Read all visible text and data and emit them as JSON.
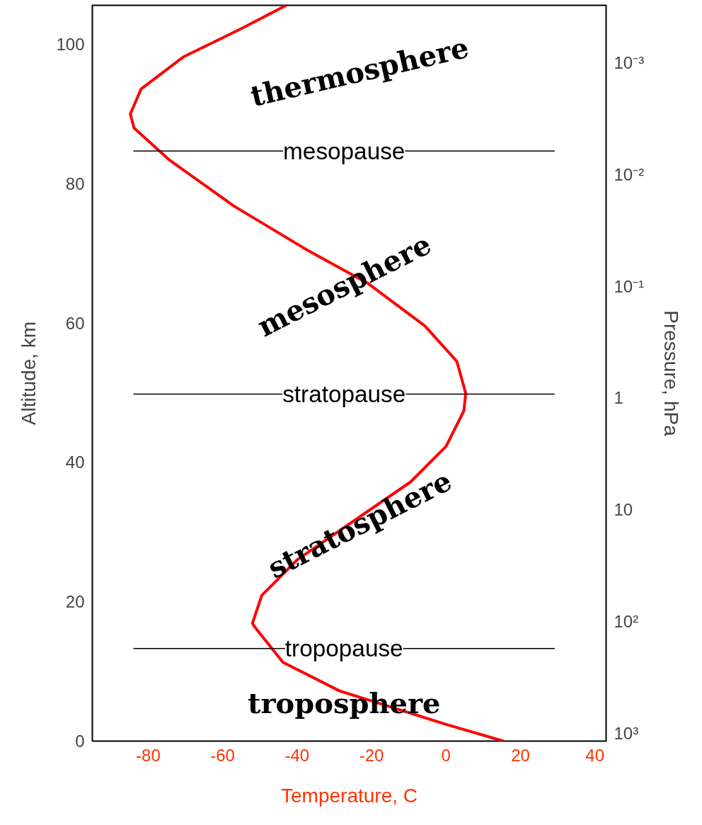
{
  "chart_data": {
    "type": "line",
    "xlabel": "Temperature, C",
    "ylabel": "Altitude, km",
    "y2label": "Pressure, hPa",
    "xlim": [
      -95,
      43
    ],
    "ylim": [
      0,
      105.6
    ],
    "xticks": [
      -80,
      -60,
      -40,
      -20,
      0,
      20,
      40
    ],
    "yticks": [
      0,
      20,
      40,
      60,
      80,
      100
    ],
    "y2lim": [
      1171,
      0.000308
    ],
    "log": "y2",
    "y2ticks": [
      {
        "value": 0.001,
        "label": "10⁻³"
      },
      {
        "value": 0.01,
        "label": "10⁻²"
      },
      {
        "value": 0.1,
        "label": "10⁻¹"
      },
      {
        "value": 1,
        "label": "1"
      },
      {
        "value": 10,
        "label": "10"
      },
      {
        "value": 100,
        "label": "10²"
      },
      {
        "value": 1000,
        "label": "10³"
      }
    ],
    "series": [
      {
        "color": "#ff0000",
        "x": [
          15.4,
          0,
          -28.6,
          -43.8,
          -51.4,
          -52,
          -49.5,
          -40,
          -24.8,
          -9.5,
          0,
          4.8,
          5.3,
          2.9,
          -5.7,
          -21,
          -38,
          -57,
          -74.3,
          -83.8,
          -84.8,
          -81.9,
          -70.5,
          -55.2,
          -42.9
        ],
        "values": [
          0,
          2.4,
          7.2,
          11.3,
          16.4,
          16.9,
          20.9,
          26,
          31.6,
          37.2,
          42.3,
          47.4,
          49.9,
          54.5,
          59.6,
          65.7,
          70.7,
          76.8,
          83.4,
          88,
          90,
          93.6,
          98.2,
          102.2,
          105.6
        ]
      }
    ],
    "ref_lines": [
      {
        "axis": "y",
        "value": 84.7,
        "label": "mesopause",
        "color": "#000000"
      },
      {
        "axis": "y",
        "value": 49.8,
        "label": "stratopause",
        "color": "#000000"
      },
      {
        "axis": "y",
        "value": 13.3,
        "label": "tropopause",
        "color": "#000000"
      }
    ],
    "annotations": [
      "thermosphere",
      "mesosphere",
      "stratosphere",
      "troposphere"
    ],
    "grid": false,
    "marker": "none",
    "line_style": "solid"
  }
}
